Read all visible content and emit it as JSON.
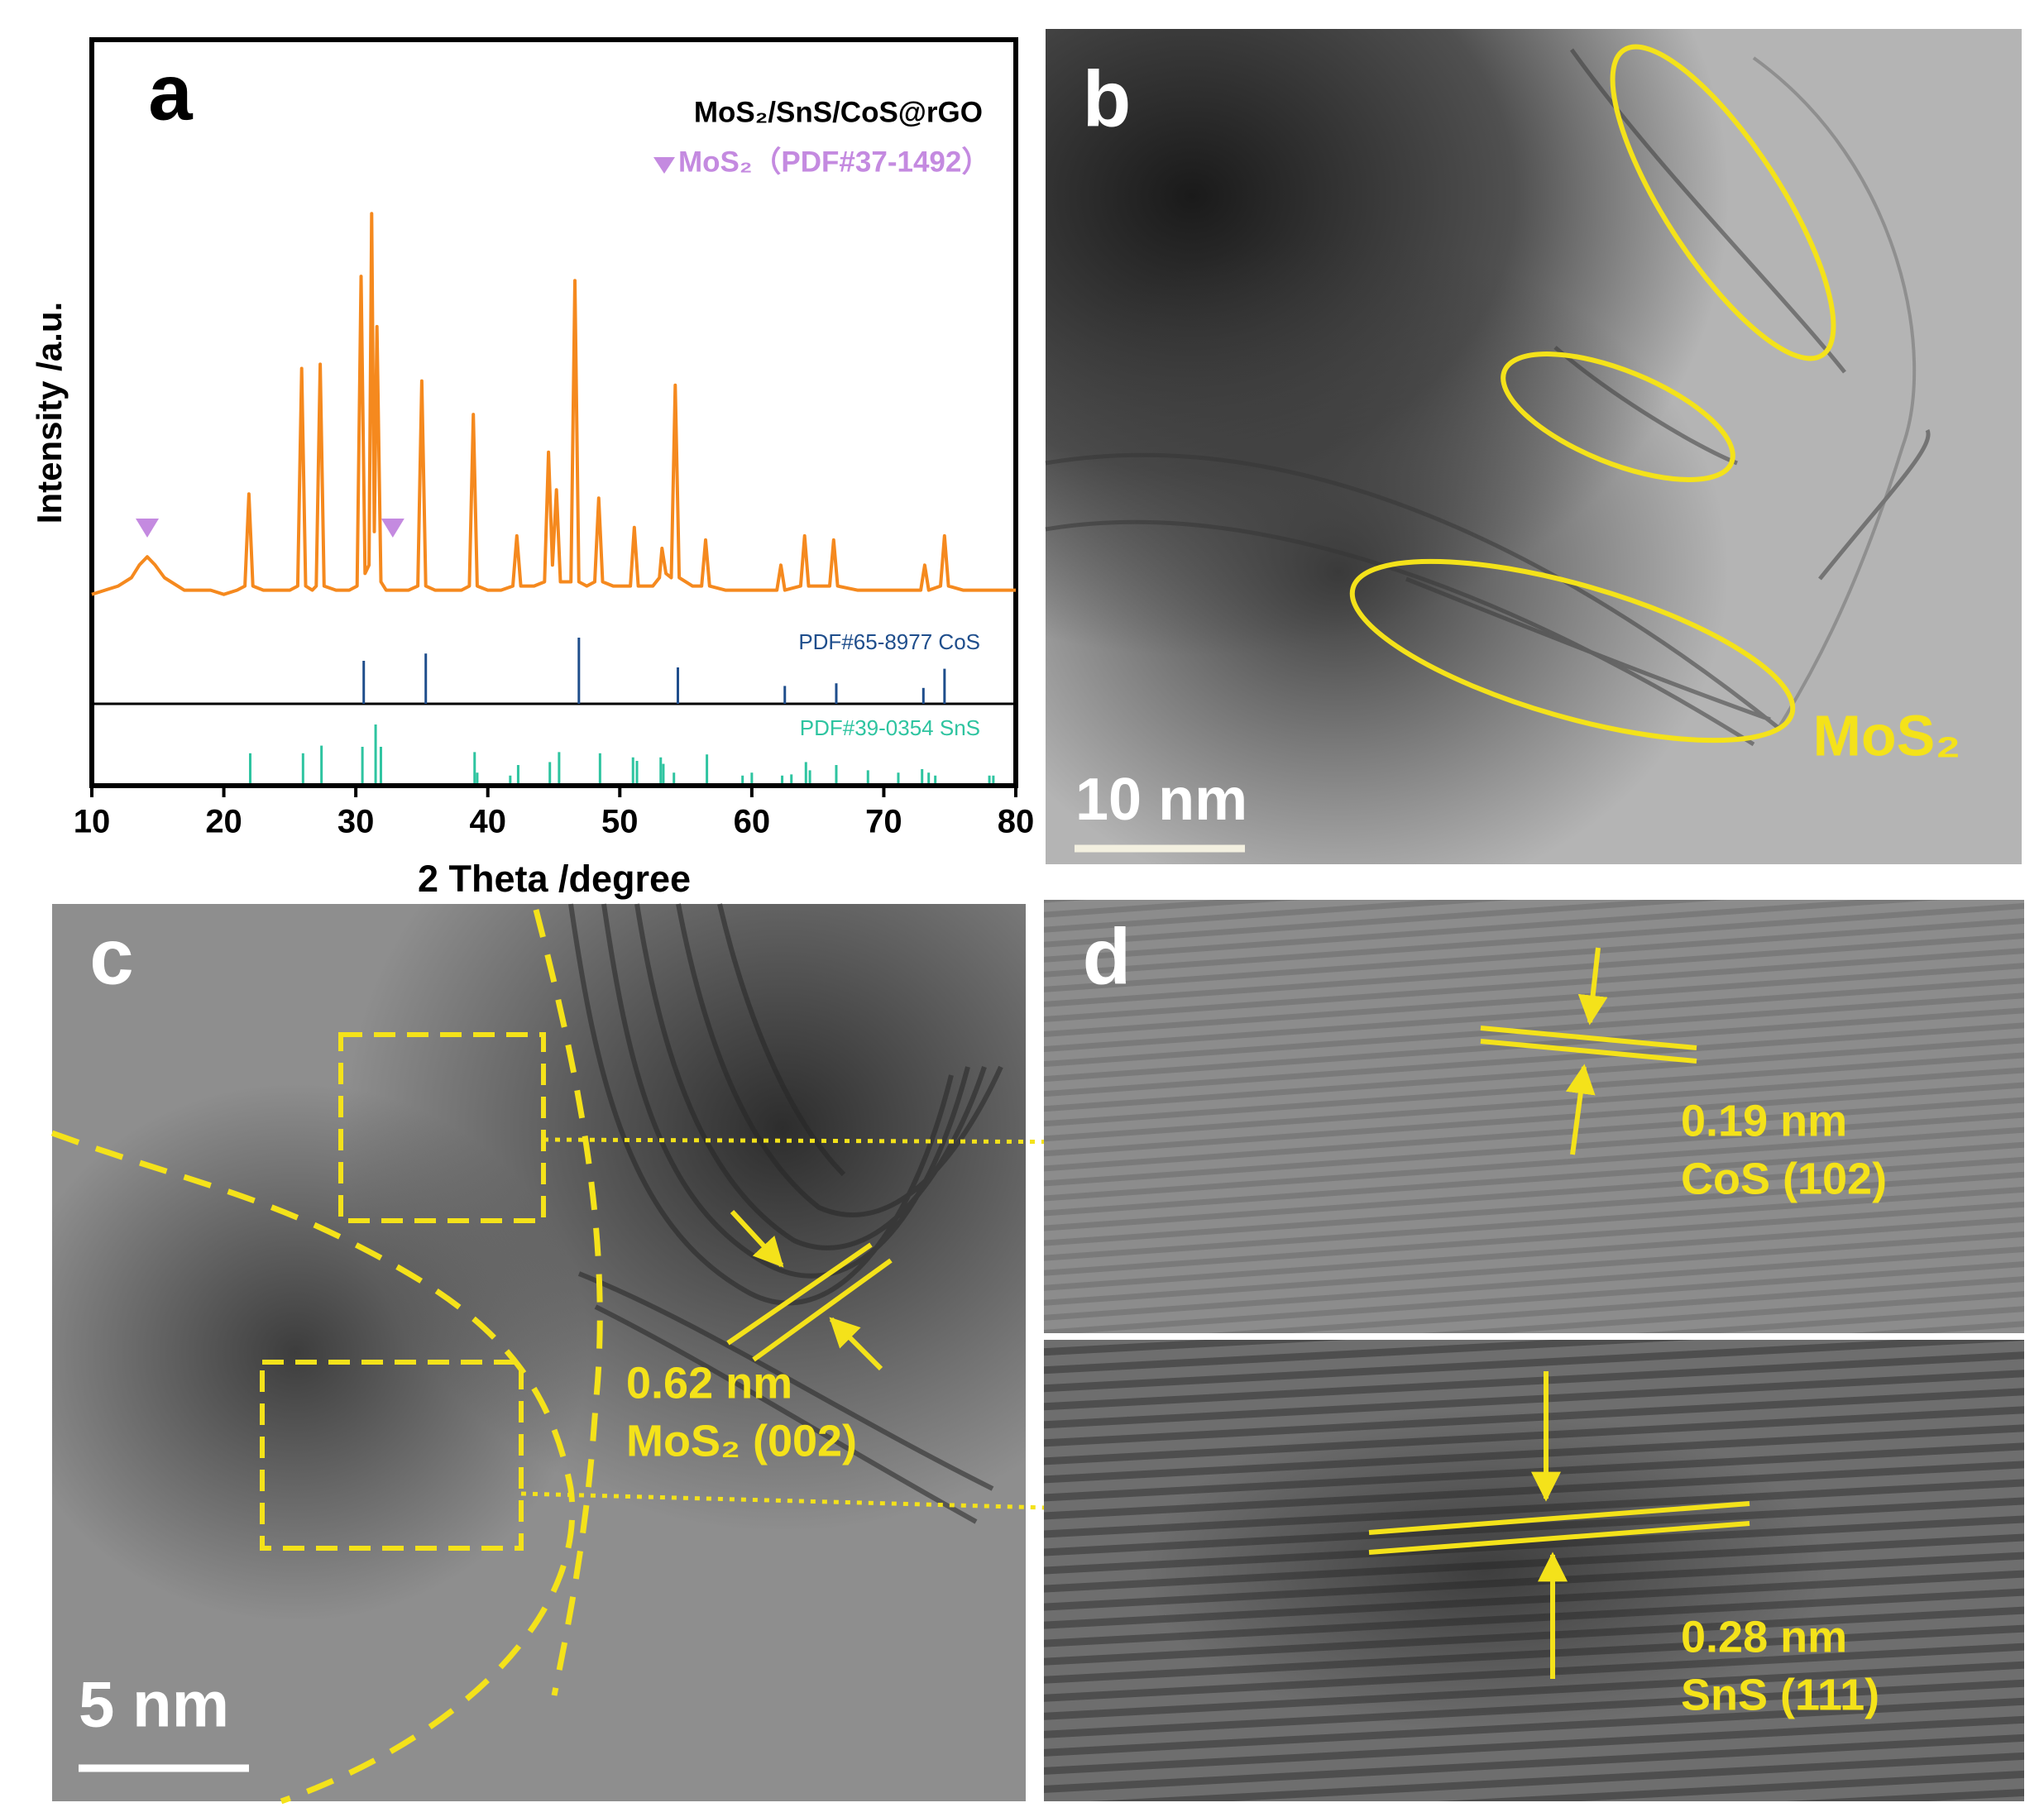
{
  "chart_data": {
    "type": "line",
    "panel_label": "a",
    "x_label": "2 Theta /degree",
    "y_label": "Intensity /a.u.",
    "xlim": [
      10,
      80
    ],
    "xticks": [
      10,
      20,
      30,
      40,
      50,
      60,
      70,
      80
    ],
    "ylim": [
      0,
      100
    ],
    "series": [
      {
        "name": "MoS₂/SnS/CoS@rGO",
        "color": "#f5891e",
        "x": [
          10,
          11,
          12,
          13,
          13.6,
          14.2,
          14.8,
          15.5,
          16,
          17,
          18,
          19,
          20,
          21,
          21.6,
          21.9,
          22.2,
          23,
          24,
          25,
          25.6,
          25.9,
          26.2,
          26.7,
          27.0,
          27.3,
          27.6,
          28.5,
          29.5,
          30.1,
          30.4,
          30.7,
          31.0,
          31.2,
          31.4,
          31.6,
          31.9,
          32.3,
          33,
          34,
          34.7,
          35.0,
          35.3,
          36,
          37,
          38,
          38.6,
          38.9,
          39.2,
          40,
          41,
          41.9,
          42.2,
          42.5,
          43.5,
          44.3,
          44.6,
          44.9,
          45.2,
          45.5,
          46.3,
          46.6,
          46.9,
          47.5,
          48.1,
          48.4,
          48.7,
          49.5,
          50.8,
          51.1,
          51.4,
          52.5,
          53.0,
          53.2,
          53.5,
          53.9,
          54.2,
          54.5,
          55.5,
          56.2,
          56.5,
          56.8,
          58,
          60,
          61.9,
          62.2,
          62.5,
          63.7,
          64.0,
          64.3,
          65.9,
          66.2,
          66.5,
          68,
          70,
          72.8,
          73.1,
          73.4,
          74.3,
          74.6,
          74.9,
          76,
          78,
          80
        ],
        "values": [
          5,
          6,
          7,
          9,
          12,
          14,
          12,
          9,
          8,
          6,
          6,
          6,
          5,
          6,
          7,
          29,
          7,
          6,
          6,
          6,
          7,
          59,
          7,
          6,
          7,
          60,
          7,
          6,
          6,
          7,
          81,
          10,
          12,
          96,
          20,
          69,
          8,
          6,
          6,
          6,
          7,
          56,
          7,
          6,
          6,
          6,
          7,
          48,
          7,
          6,
          6,
          7,
          19,
          7,
          7,
          8,
          39,
          12,
          30,
          8,
          8,
          80,
          8,
          7,
          8,
          28,
          8,
          7,
          7,
          21,
          7,
          7,
          9,
          16,
          10,
          9,
          55,
          9,
          7,
          7,
          18,
          7,
          6,
          6,
          6,
          12,
          6,
          7,
          19,
          7,
          7,
          18,
          7,
          6,
          6,
          6,
          12,
          6,
          7,
          19,
          7,
          6,
          6,
          6
        ]
      }
    ],
    "markers": {
      "name": "MoS₂（PDF#37-1492）",
      "color": "#c48ae0",
      "x": [
        14.2,
        32.8
      ]
    },
    "reference_ylim": [
      0,
      100
    ],
    "references": [
      {
        "name": "PDF#65-8977 CoS",
        "color": "#1f4e8c",
        "x": [
          30.6,
          35.3,
          46.9,
          54.4,
          62.5,
          66.4,
          73.0,
          74.6
        ],
        "values": [
          65,
          76,
          100,
          55,
          27,
          31,
          24,
          53
        ]
      },
      {
        "name": "PDF#39-0354 SnS",
        "color": "#2ec4a0",
        "x": [
          22.0,
          26.0,
          27.4,
          30.5,
          31.5,
          31.9,
          39.0,
          39.2,
          41.7,
          42.3,
          44.7,
          45.4,
          48.5,
          51.0,
          51.3,
          53.1,
          53.3,
          54.1,
          56.6,
          59.3,
          60.0,
          62.3,
          63.0,
          64.1,
          64.4,
          66.4,
          68.8,
          71.1,
          72.9,
          73.4,
          73.9,
          78.0,
          78.3
        ],
        "values": [
          51,
          51,
          64,
          62,
          100,
          62,
          53,
          18,
          13,
          31,
          36,
          53,
          51,
          44,
          38,
          44,
          33,
          18,
          49,
          13,
          18,
          13,
          15,
          36,
          22,
          31,
          22,
          18,
          24,
          18,
          13,
          13,
          13
        ]
      }
    ]
  },
  "panels": {
    "b": {
      "label": "b",
      "scale_bar": "10 nm",
      "annotation": "MoS₂"
    },
    "c": {
      "label": "c",
      "scale_bar": "5 nm",
      "spacing": "0.62 nm",
      "plane": "MoS₂ (002)"
    },
    "d": {
      "label": "d",
      "top": {
        "spacing": "0.19 nm",
        "plane": "CoS (102)"
      },
      "bottom": {
        "spacing": "0.28 nm",
        "plane": "SnS (111)"
      }
    }
  }
}
